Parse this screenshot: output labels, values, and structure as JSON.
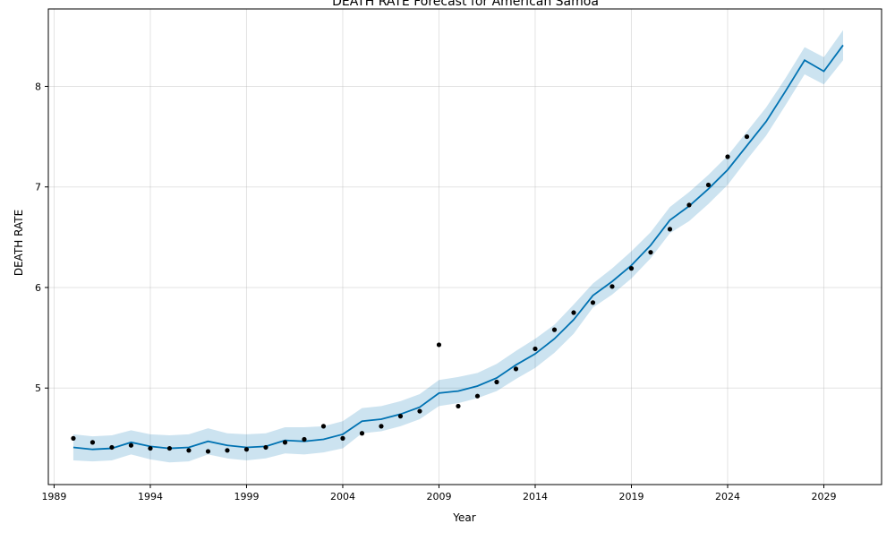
{
  "chart_data": {
    "type": "line",
    "title": "DEATH RATE Forecast for American Samoa",
    "xlabel": "Year",
    "ylabel": "DEATH RATE",
    "xlim": [
      1988.7,
      2032.0
    ],
    "ylim": [
      4.04,
      8.77
    ],
    "grid": true,
    "x_ticks": [
      1989,
      1994,
      1999,
      2004,
      2009,
      2014,
      2019,
      2024,
      2029
    ],
    "y_ticks": [
      5,
      6,
      7,
      8
    ],
    "colors": {
      "forecast_line": "#0072B2",
      "uncertainty_band": "#0072B2",
      "observed_points": "#000000"
    },
    "observed": {
      "x": [
        1990,
        1991,
        1992,
        1993,
        1994,
        1995,
        1996,
        1997,
        1998,
        1999,
        2000,
        2001,
        2002,
        2003,
        2004,
        2005,
        2006,
        2007,
        2008,
        2009,
        2010,
        2011,
        2012,
        2013,
        2014,
        2015,
        2016,
        2017,
        2018,
        2019,
        2020,
        2021,
        2022,
        2023,
        2024,
        2025
      ],
      "y": [
        4.5,
        4.46,
        4.41,
        4.43,
        4.4,
        4.4,
        4.38,
        4.37,
        4.38,
        4.39,
        4.41,
        4.46,
        4.49,
        4.62,
        4.5,
        4.55,
        4.62,
        4.72,
        4.77,
        5.43,
        4.82,
        4.92,
        5.06,
        5.19,
        5.39,
        5.58,
        5.75,
        5.85,
        6.01,
        6.19,
        6.35,
        6.58,
        6.82,
        7.02,
        7.3,
        7.5
      ]
    },
    "forecast": {
      "x": [
        1990,
        1991,
        1992,
        1993,
        1994,
        1995,
        1996,
        1997,
        1998,
        1999,
        2000,
        2001,
        2002,
        2003,
        2004,
        2005,
        2006,
        2007,
        2008,
        2009,
        2010,
        2011,
        2012,
        2013,
        2014,
        2015,
        2016,
        2017,
        2018,
        2019,
        2020,
        2021,
        2022,
        2023,
        2024,
        2025,
        2026,
        2027,
        2028,
        2029,
        2030
      ],
      "yhat": [
        4.41,
        4.39,
        4.4,
        4.46,
        4.42,
        4.4,
        4.41,
        4.47,
        4.43,
        4.41,
        4.42,
        4.48,
        4.47,
        4.49,
        4.54,
        4.67,
        4.69,
        4.74,
        4.81,
        4.95,
        4.97,
        5.02,
        5.1,
        5.23,
        5.34,
        5.49,
        5.68,
        5.92,
        6.06,
        6.22,
        6.42,
        6.67,
        6.81,
        6.98,
        7.17,
        7.41,
        7.65,
        7.95,
        8.26,
        8.15,
        8.41
      ],
      "lower": [
        4.28,
        4.27,
        4.28,
        4.34,
        4.29,
        4.26,
        4.27,
        4.34,
        4.3,
        4.28,
        4.3,
        4.35,
        4.34,
        4.36,
        4.4,
        4.55,
        4.57,
        4.62,
        4.69,
        4.82,
        4.85,
        4.9,
        4.97,
        5.09,
        5.2,
        5.35,
        5.54,
        5.8,
        5.93,
        6.09,
        6.29,
        6.54,
        6.66,
        6.83,
        7.02,
        7.27,
        7.51,
        7.81,
        8.12,
        8.02,
        8.26
      ],
      "upper": [
        4.54,
        4.52,
        4.53,
        4.58,
        4.54,
        4.53,
        4.54,
        4.6,
        4.55,
        4.54,
        4.55,
        4.61,
        4.61,
        4.62,
        4.67,
        4.8,
        4.82,
        4.87,
        4.94,
        5.08,
        5.11,
        5.15,
        5.24,
        5.37,
        5.49,
        5.63,
        5.83,
        6.04,
        6.19,
        6.36,
        6.55,
        6.8,
        6.95,
        7.12,
        7.31,
        7.55,
        7.79,
        8.08,
        8.39,
        8.29,
        8.56
      ]
    }
  }
}
